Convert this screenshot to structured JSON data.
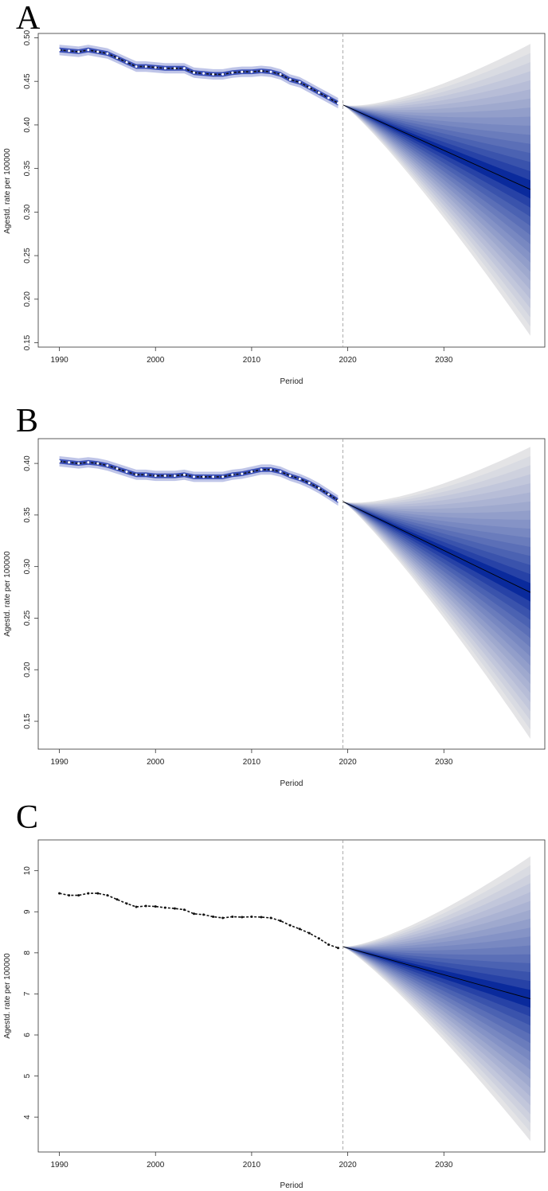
{
  "figure": {
    "panels": [
      {
        "panel_label": "A",
        "ylabel": "Agestd. rate per 100000",
        "xlabel": "Period",
        "yticks": [
          "0.15",
          "0.20",
          "0.25",
          "0.30",
          "0.35",
          "0.40",
          "0.45",
          "0.50"
        ],
        "xticks": [
          "1990",
          "2000",
          "2010",
          "2020",
          "2030"
        ]
      },
      {
        "panel_label": "B",
        "ylabel": "Agestd. rate per 100000",
        "xlabel": "Period",
        "yticks": [
          "0.15",
          "0.20",
          "0.25",
          "0.30",
          "0.35",
          "0.40"
        ],
        "xticks": [
          "1990",
          "2000",
          "2010",
          "2020",
          "2030"
        ]
      },
      {
        "panel_label": "C",
        "ylabel": "Agestd. rate per 100000",
        "xlabel": "Period",
        "yticks": [
          "4",
          "5",
          "6",
          "7",
          "8",
          "9",
          "10"
        ],
        "xticks": [
          "1990",
          "2000",
          "2010",
          "2020",
          "2030"
        ]
      }
    ]
  },
  "colors": {
    "observed_band": "#b8bfe6",
    "fan_inner": "#0a2a9c",
    "fan_outer": "#e4e4e6",
    "observed_line": "#111111",
    "observed_points": "#ffffff",
    "projection_line": "#000000",
    "divider_line": "#999999"
  },
  "chart_data": [
    {
      "type": "line",
      "title": "",
      "xlabel": "Period",
      "ylabel": "Agestd. rate per 100000",
      "xlim": [
        1987.8,
        2040.5
      ],
      "ylim": [
        0.145,
        0.505
      ],
      "grid": false,
      "divider_x": 2019.5,
      "observed": {
        "x": [
          1990,
          1991,
          1992,
          1993,
          1994,
          1995,
          1996,
          1997,
          1998,
          1999,
          2000,
          2001,
          2002,
          2003,
          2004,
          2005,
          2006,
          2007,
          2008,
          2009,
          2010,
          2011,
          2012,
          2013,
          2014,
          2015,
          2016,
          2017,
          2018,
          2019
        ],
        "y": [
          0.486,
          0.485,
          0.484,
          0.486,
          0.484,
          0.482,
          0.477,
          0.472,
          0.467,
          0.467,
          0.466,
          0.465,
          0.465,
          0.465,
          0.46,
          0.459,
          0.458,
          0.458,
          0.46,
          0.461,
          0.461,
          0.462,
          0.461,
          0.458,
          0.452,
          0.449,
          0.443,
          0.437,
          0.431,
          0.425
        ],
        "band": 0.006
      },
      "projection": {
        "x_start": 2019.5,
        "y_start": 0.423,
        "x_end": 2039,
        "y_end": 0.326,
        "outer_upper": 0.493,
        "outer_lower": 0.158
      }
    },
    {
      "type": "line",
      "title": "",
      "xlabel": "Period",
      "ylabel": "Agestd. rate per 100000",
      "xlim": [
        1987.8,
        2040.5
      ],
      "ylim": [
        0.123,
        0.424
      ],
      "grid": false,
      "divider_x": 2019.5,
      "observed": {
        "x": [
          1990,
          1991,
          1992,
          1993,
          1994,
          1995,
          1996,
          1997,
          1998,
          1999,
          2000,
          2001,
          2002,
          2003,
          2004,
          2005,
          2006,
          2007,
          2008,
          2009,
          2010,
          2011,
          2012,
          2013,
          2014,
          2015,
          2016,
          2017,
          2018,
          2019
        ],
        "y": [
          0.402,
          0.401,
          0.4,
          0.401,
          0.4,
          0.398,
          0.395,
          0.392,
          0.389,
          0.389,
          0.388,
          0.388,
          0.388,
          0.389,
          0.387,
          0.387,
          0.387,
          0.387,
          0.389,
          0.39,
          0.392,
          0.394,
          0.394,
          0.392,
          0.388,
          0.385,
          0.381,
          0.376,
          0.37,
          0.364
        ],
        "band": 0.005
      },
      "projection": {
        "x_start": 2019.5,
        "y_start": 0.363,
        "x_end": 2039,
        "y_end": 0.275,
        "outer_upper": 0.416,
        "outer_lower": 0.133
      }
    },
    {
      "type": "line",
      "title": "",
      "xlabel": "Period",
      "ylabel": "Agestd. rate per 100000",
      "xlim": [
        1987.8,
        2040.5
      ],
      "ylim": [
        3.15,
        10.75
      ],
      "grid": false,
      "divider_x": 2019.5,
      "observed": {
        "x": [
          1990,
          1991,
          1992,
          1993,
          1994,
          1995,
          1996,
          1997,
          1998,
          1999,
          2000,
          2001,
          2002,
          2003,
          2004,
          2005,
          2006,
          2007,
          2008,
          2009,
          2010,
          2011,
          2012,
          2013,
          2014,
          2015,
          2016,
          2017,
          2018,
          2019
        ],
        "y": [
          9.45,
          9.4,
          9.4,
          9.45,
          9.45,
          9.4,
          9.3,
          9.2,
          9.12,
          9.14,
          9.13,
          9.1,
          9.08,
          9.05,
          8.95,
          8.93,
          8.88,
          8.85,
          8.88,
          8.87,
          8.88,
          8.87,
          8.85,
          8.78,
          8.67,
          8.58,
          8.48,
          8.35,
          8.2,
          8.12
        ],
        "band": 0.0
      },
      "projection": {
        "x_start": 2019.5,
        "y_start": 8.15,
        "x_end": 2039,
        "y_end": 6.88,
        "outer_upper": 10.35,
        "outer_lower": 3.42
      }
    }
  ]
}
